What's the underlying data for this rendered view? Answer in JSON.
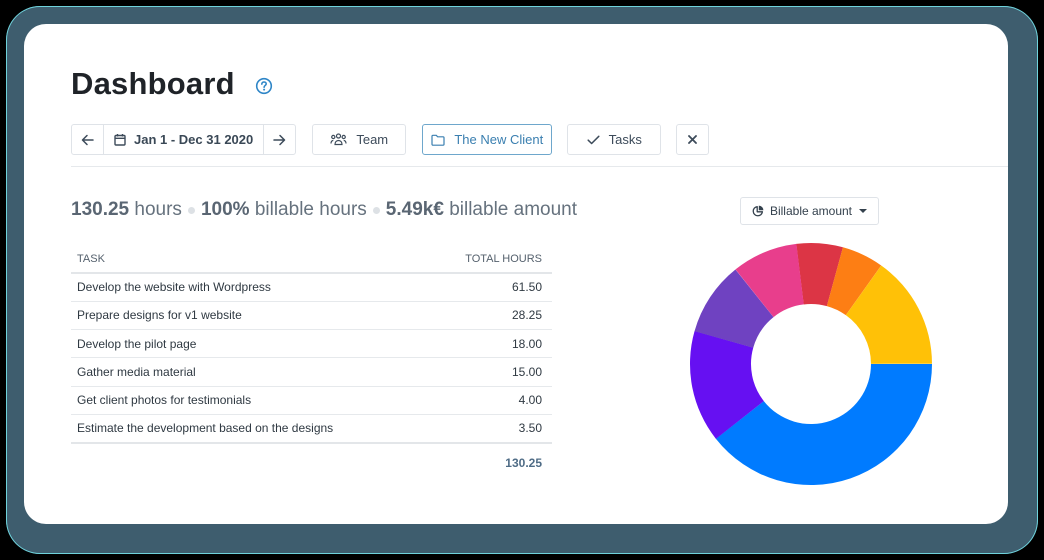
{
  "header": {
    "title": "Dashboard",
    "help_icon": "question-circle-icon"
  },
  "toolbar": {
    "prev_icon": "arrow-left-icon",
    "date_range": "Jan 1 - Dec 31 2020",
    "calendar_icon": "calendar-icon",
    "next_icon": "arrow-right-icon",
    "team_label": "Team",
    "team_icon": "users-icon",
    "client_label": "The New Client",
    "client_icon": "folder-icon",
    "tasks_label": "Tasks",
    "tasks_icon": "check-icon",
    "clear_icon": "close-icon"
  },
  "summary": {
    "hours_value": "130.25",
    "hours_label": "hours",
    "billable_pct_value": "100%",
    "billable_pct_label": "billable hours",
    "billable_amount_value": "5.49k€",
    "billable_amount_label": "billable amount"
  },
  "table": {
    "columns": [
      "TASK",
      "TOTAL HOURS"
    ],
    "rows": [
      {
        "task": "Develop the website with Wordpress",
        "hours": "61.50"
      },
      {
        "task": "Prepare designs for v1 website",
        "hours": "28.25"
      },
      {
        "task": "Develop the pilot page",
        "hours": "18.00"
      },
      {
        "task": "Gather media material",
        "hours": "15.00"
      },
      {
        "task": "Get client photos for testimonials",
        "hours": "4.00"
      },
      {
        "task": "Estimate the development based on the designs",
        "hours": "3.50"
      }
    ],
    "total": "130.25"
  },
  "chart_select": {
    "label": "Billable amount",
    "icon": "pie-chart-icon"
  },
  "chart_data": {
    "type": "pie",
    "variant": "donut",
    "title": "Billable amount",
    "total_label": "5.49k€",
    "start_angle_deg": 0,
    "direction": "clockwise",
    "slices": [
      {
        "color": "#dc3545",
        "start_deg": -7.0,
        "share_pct": 6.2,
        "approx_value_keur": 0.34
      },
      {
        "color": "#fd7e14",
        "start_deg": 15.3,
        "share_pct": 5.6,
        "approx_value_keur": 0.31
      },
      {
        "color": "#ffc107",
        "start_deg": 35.5,
        "share_pct": 15.1,
        "approx_value_keur": 0.83
      },
      {
        "color": "#007bff",
        "start_deg": 90.0,
        "share_pct": 39.4,
        "approx_value_keur": 2.16
      },
      {
        "color": "#6610f2",
        "start_deg": 231.8,
        "share_pct": 15.0,
        "approx_value_keur": 0.82
      },
      {
        "color": "#6f42c1",
        "start_deg": 285.7,
        "share_pct": 9.9,
        "approx_value_keur": 0.54
      },
      {
        "color": "#e83e8c",
        "start_deg": 321.4,
        "share_pct": 8.8,
        "approx_value_keur": 0.48
      }
    ],
    "legend": "none"
  },
  "colors": {
    "accent": "#3a7fb0",
    "frame": "#3e5d6e",
    "text_dark": "#1f2328",
    "text_muted": "#66727e"
  }
}
